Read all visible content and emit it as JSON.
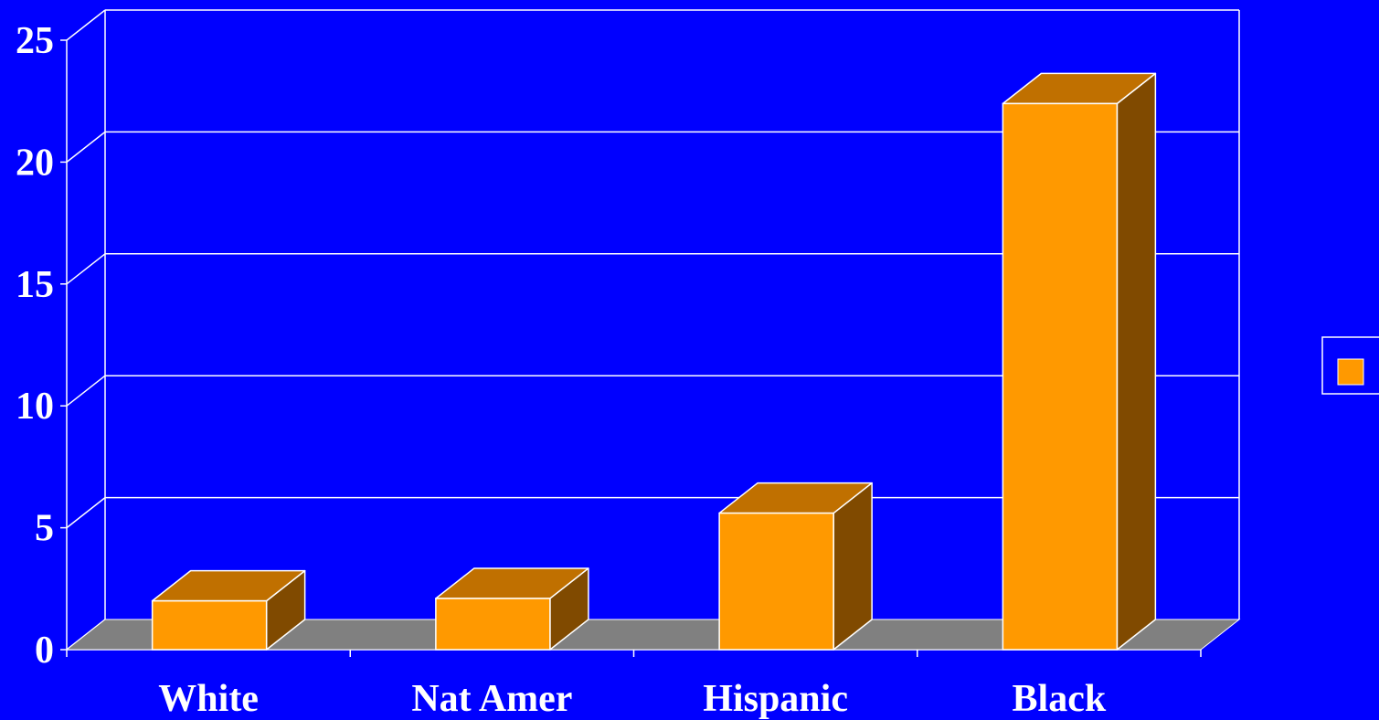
{
  "chart_data": {
    "type": "bar",
    "categories": [
      "White",
      "Nat Amer",
      "Hispanic",
      "Black"
    ],
    "values": [
      2.0,
      2.1,
      5.6,
      22.4
    ],
    "ylim": [
      0,
      25
    ],
    "yticks": [
      0,
      5,
      10,
      15,
      20,
      25
    ],
    "grid": true,
    "legend": "right",
    "title": "",
    "xlabel": "",
    "ylabel": ""
  },
  "colors": {
    "background": "#0000ff",
    "bar_front": "#ff9900",
    "bar_top": "#c07000",
    "bar_side": "#804a00",
    "floor": "#808080",
    "lines": "#ffffff"
  }
}
